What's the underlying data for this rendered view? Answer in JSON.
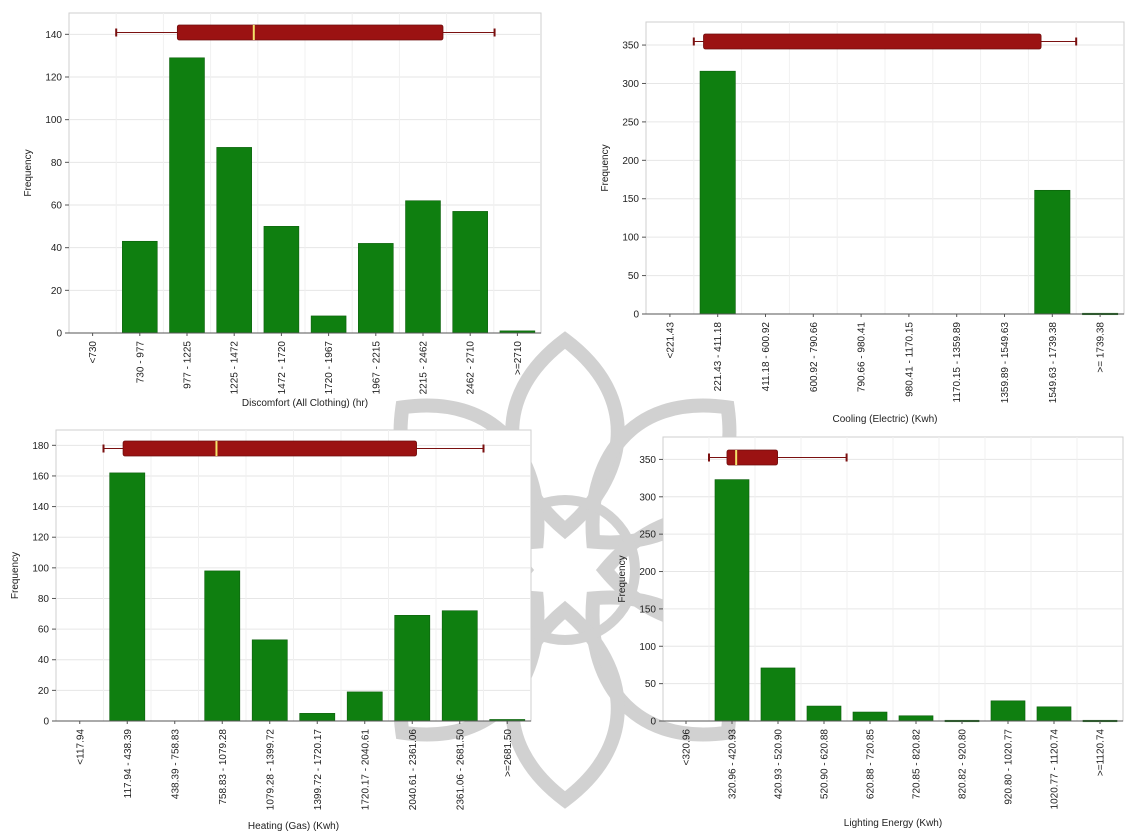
{
  "colors": {
    "bar": "#0f7f10",
    "bar_edge": "#0a5e0a",
    "box": "#9b1212",
    "box_light": "#b22727",
    "median": "#f4e36a",
    "whisker": "#7a1010",
    "grid": "#e6e6e6",
    "axis": "#555555"
  },
  "watermark": {
    "icon": "university-seal-icon",
    "color": "#9a9a9a"
  },
  "chart_data": [
    {
      "type": "bar",
      "id": "discomfort",
      "xlabel": "Discomfort (All Clothing) (hr)",
      "ylabel": "Frequency",
      "ylim": [
        0,
        150
      ],
      "yticks": [
        0,
        20,
        40,
        60,
        80,
        100,
        120,
        140
      ],
      "categories": [
        "<730",
        "730 - 977",
        "977 - 1225",
        "1225 - 1472",
        "1472 - 1720",
        "1720 - 1967",
        "1967 - 2215",
        "2215 - 2462",
        "2462 - 2710",
        ">=2710"
      ],
      "values": [
        0,
        43,
        129,
        87,
        50,
        8,
        42,
        62,
        57,
        1
      ],
      "boxplot": {
        "min": 730,
        "q1": 1050,
        "median": 1450,
        "q3": 2440,
        "max": 2710
      },
      "grid": true
    },
    {
      "type": "bar",
      "id": "cooling",
      "xlabel": "Cooling (Electric) (Kwh)",
      "ylabel": "Frequency",
      "ylim": [
        0,
        380
      ],
      "yticks": [
        0,
        50,
        100,
        150,
        200,
        250,
        300,
        350
      ],
      "categories": [
        "<221.43",
        "221.43 - 411.18",
        "411.18 - 600.92",
        "600.92 - 790.66",
        "790.66 - 980.41",
        "980.41 - 1170.15",
        "1170.15 - 1359.89",
        "1359.89 - 1549.63",
        "1549.63 - 1739.38",
        ">= 1739.38"
      ],
      "values": [
        0,
        316,
        0,
        0,
        0,
        0,
        0,
        0,
        161,
        1
      ],
      "boxplot": {
        "min": 221.43,
        "q1": 260,
        "median": 260,
        "q3": 1600,
        "max": 1739.38
      },
      "grid": true
    },
    {
      "type": "bar",
      "id": "heating",
      "xlabel": "Heating (Gas) (Kwh)",
      "ylabel": "Frequency",
      "ylim": [
        0,
        190
      ],
      "yticks": [
        0,
        20,
        40,
        60,
        80,
        100,
        120,
        140,
        160,
        180
      ],
      "categories": [
        "<117.94",
        "117.94 - 438.39",
        "438.39 - 758.83",
        "758.83 - 1079.28",
        "1079.28 - 1399.72",
        "1399.72 - 1720.17",
        "1720.17 - 2040.61",
        "2040.61 - 2361.06",
        "2361.06 - 2681.50",
        ">=2681.50"
      ],
      "values": [
        0,
        162,
        0,
        98,
        53,
        5,
        19,
        69,
        72,
        1
      ],
      "boxplot": {
        "min": 117.94,
        "q1": 250,
        "median": 880,
        "q3": 2230,
        "max": 2681.5
      },
      "grid": true
    },
    {
      "type": "bar",
      "id": "lighting",
      "xlabel": "Lighting Energy (Kwh)",
      "ylabel": "Frequency",
      "ylim": [
        0,
        380
      ],
      "yticks": [
        0,
        50,
        100,
        150,
        200,
        250,
        300,
        350
      ],
      "categories": [
        "<320.96",
        "320.96 - 420.93",
        "420.93 - 520.90",
        "520.90 - 620.88",
        "620.88 - 720.85",
        "720.85 - 820.82",
        "820.82 - 920.80",
        "920.80 - 1020.77",
        "1020.77 - 1120.74",
        ">=1120.74"
      ],
      "values": [
        0,
        323,
        71,
        20,
        12,
        7,
        1,
        27,
        19,
        1
      ],
      "boxplot": {
        "min": 320.96,
        "q1": 360,
        "median": 380,
        "q3": 470,
        "max": 620
      },
      "grid": true
    }
  ]
}
